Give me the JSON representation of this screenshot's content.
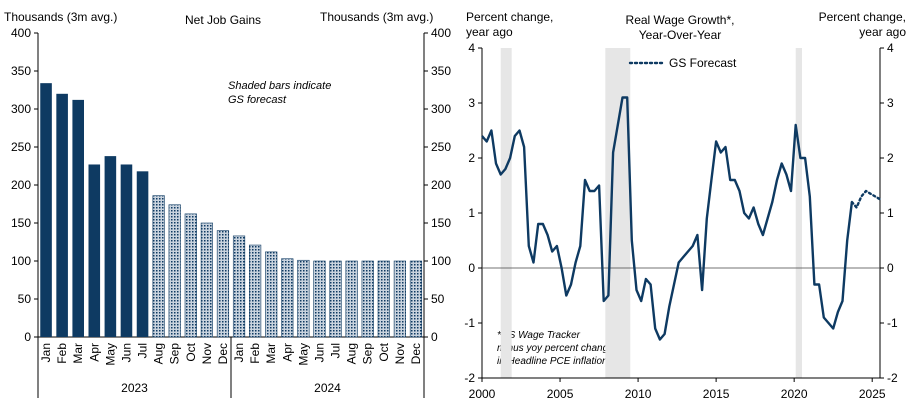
{
  "chart_data": [
    {
      "type": "bar",
      "title": "Net Job Gains",
      "ylabel_left": "Thousands (3m avg.)",
      "ylabel_right": "Thousands (3m avg.)",
      "ylim": [
        0,
        400
      ],
      "yticks": [
        0,
        50,
        100,
        150,
        200,
        250,
        300,
        350,
        400
      ],
      "annotation": [
        "Shaded bars indicate",
        "GS forecast"
      ],
      "categories": [
        "Jan",
        "Feb",
        "Mar",
        "Apr",
        "May",
        "Jun",
        "Jul",
        "Aug",
        "Sep",
        "Oct",
        "Nov",
        "Dec",
        "Jan",
        "Feb",
        "Mar",
        "Apr",
        "May",
        "Jun",
        "Jul",
        "Aug",
        "Sep",
        "Oct",
        "Nov",
        "Dec"
      ],
      "year_groups": [
        {
          "label": "2023",
          "count": 12
        },
        {
          "label": "2024",
          "count": 12
        }
      ],
      "values": [
        334,
        320,
        312,
        227,
        238,
        227,
        218,
        186,
        174,
        162,
        150,
        140,
        133,
        121,
        112,
        103,
        101,
        100,
        100,
        100,
        100,
        100,
        100,
        100
      ],
      "forecast_start_index": 7,
      "colors": {
        "actual": "#0e3a62",
        "forecast_fill": "#c9d3de",
        "forecast_line": "#0e3a62"
      },
      "grid": false
    },
    {
      "type": "line",
      "title": [
        "Real Wage Growth*,",
        "Year-Over-Year"
      ],
      "ylabel_left": [
        "Percent change,",
        "year ago"
      ],
      "ylabel_right": [
        "Percent change,",
        "year ago"
      ],
      "ylim": [
        -2,
        4
      ],
      "yticks": [
        -2,
        -1,
        0,
        1,
        2,
        3,
        4
      ],
      "xlim": [
        2000,
        2025.5
      ],
      "xticks": [
        2000,
        2005,
        2010,
        2015,
        2020,
        2025
      ],
      "recessions": [
        [
          2001.2,
          2001.9
        ],
        [
          2007.9,
          2009.5
        ],
        [
          2020.1,
          2020.5
        ]
      ],
      "footnote": [
        "*GS Wage Tracker",
        "minus yoy percent change",
        "in Headline PCE inflation"
      ],
      "legend": {
        "label": "GS Forecast",
        "position": "top"
      },
      "series": [
        {
          "name": "",
          "style": "solid",
          "color": "#0e3a62",
          "x": [
            2000.0,
            2000.3,
            2000.6,
            2000.9,
            2001.2,
            2001.5,
            2001.8,
            2002.1,
            2002.4,
            2002.7,
            2003.0,
            2003.3,
            2003.6,
            2003.9,
            2004.2,
            2004.5,
            2004.8,
            2005.1,
            2005.4,
            2005.7,
            2006.0,
            2006.3,
            2006.6,
            2006.9,
            2007.2,
            2007.5,
            2007.8,
            2008.1,
            2008.4,
            2008.7,
            2009.0,
            2009.3,
            2009.6,
            2009.9,
            2010.2,
            2010.5,
            2010.8,
            2011.1,
            2011.4,
            2011.7,
            2012.0,
            2012.3,
            2012.6,
            2012.9,
            2013.2,
            2013.5,
            2013.8,
            2014.1,
            2014.4,
            2014.7,
            2015.0,
            2015.3,
            2015.6,
            2015.9,
            2016.2,
            2016.5,
            2016.8,
            2017.1,
            2017.4,
            2017.7,
            2018.0,
            2018.3,
            2018.6,
            2018.9,
            2019.2,
            2019.5,
            2019.8,
            2020.1,
            2020.4,
            2020.7,
            2021.0,
            2021.3,
            2021.6,
            2021.9,
            2022.2,
            2022.5,
            2022.8,
            2023.1,
            2023.4,
            2023.7
          ],
          "y": [
            2.4,
            2.3,
            2.5,
            1.9,
            1.7,
            1.8,
            2.0,
            2.4,
            2.5,
            2.2,
            0.4,
            0.1,
            0.8,
            0.8,
            0.6,
            0.3,
            0.4,
            0.0,
            -0.5,
            -0.3,
            0.1,
            0.4,
            1.6,
            1.4,
            1.4,
            1.5,
            -0.6,
            -0.5,
            2.1,
            2.6,
            3.1,
            3.1,
            0.5,
            -0.4,
            -0.6,
            -0.2,
            -0.3,
            -1.1,
            -1.3,
            -1.2,
            -0.7,
            -0.3,
            0.1,
            0.2,
            0.3,
            0.4,
            0.6,
            -0.4,
            0.9,
            1.6,
            2.3,
            2.1,
            2.2,
            1.6,
            1.6,
            1.4,
            1.0,
            0.9,
            1.1,
            0.8,
            0.6,
            0.9,
            1.2,
            1.6,
            1.9,
            1.7,
            1.4,
            2.6,
            2.0,
            2.0,
            1.3,
            -0.3,
            -0.3,
            -0.9,
            -1.0,
            -1.1,
            -0.8,
            -0.6,
            0.5,
            1.2
          ]
        },
        {
          "name": "GS Forecast",
          "style": "dotted",
          "color": "#0e3a62",
          "x": [
            2023.7,
            2024.0,
            2024.3,
            2024.6,
            2024.9,
            2025.2,
            2025.5
          ],
          "y": [
            1.2,
            1.1,
            1.3,
            1.4,
            1.35,
            1.3,
            1.25
          ]
        }
      ],
      "zero_line": true,
      "grid": false
    }
  ]
}
